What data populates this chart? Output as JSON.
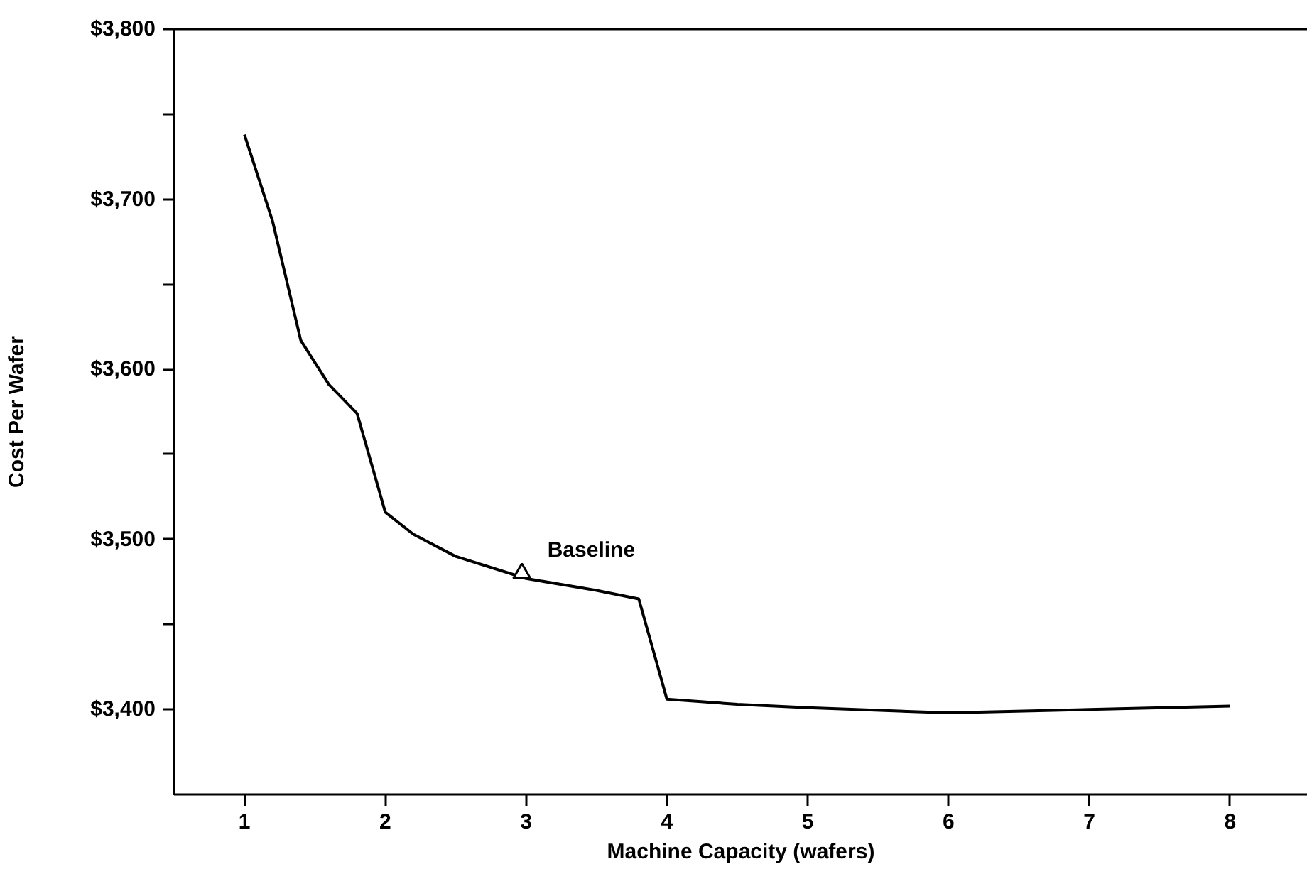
{
  "chart_data": {
    "type": "line",
    "xlabel": "Machine Capacity (wafers)",
    "ylabel": "Cost Per Wafer",
    "xlim": [
      0.5,
      8.55
    ],
    "ylim": [
      3350,
      3800
    ],
    "xticks": [
      1,
      2,
      3,
      4,
      5,
      6,
      7,
      8
    ],
    "yticks": [
      {
        "value": 3400,
        "label": "$3,400"
      },
      {
        "value": 3450,
        "label": null
      },
      {
        "value": 3500,
        "label": "$3,500"
      },
      {
        "value": 3550,
        "label": null
      },
      {
        "value": 3600,
        "label": "$3,600"
      },
      {
        "value": 3650,
        "label": null
      },
      {
        "value": 3700,
        "label": "$3,700"
      },
      {
        "value": 3750,
        "label": null
      },
      {
        "value": 3800,
        "label": "$3,800"
      }
    ],
    "grid": false,
    "line_style": "solid",
    "series": [
      {
        "color": "#000000",
        "marker": "none",
        "x": [
          1,
          1.2,
          1.4,
          1.6,
          1.8,
          2,
          2.2,
          2.5,
          3,
          3.5,
          3.8,
          4,
          4.5,
          5,
          6,
          7,
          8
        ],
        "values": [
          3738,
          3687,
          3617,
          3591,
          3574,
          3516,
          3503,
          3490,
          3477,
          3470,
          3465,
          3406,
          3403,
          3401,
          3398,
          3400,
          3402
        ]
      },
      {
        "type": "scatter",
        "color": "#000000",
        "marker": "triangle",
        "x": [
          2.97
        ],
        "values": [
          3480
        ]
      }
    ],
    "annotations": [
      {
        "text": "Baseline",
        "x": 2.97,
        "y": 3480
      }
    ]
  }
}
